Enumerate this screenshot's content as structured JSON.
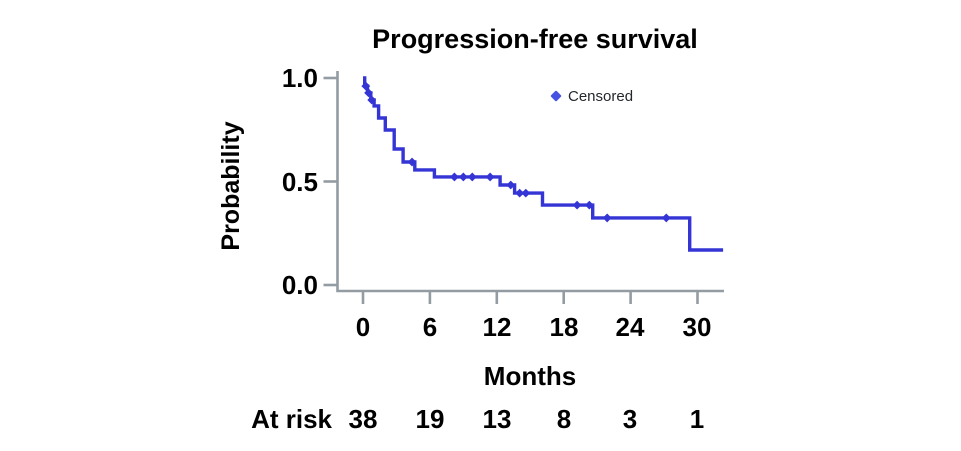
{
  "title": "Progression-free survival",
  "axes": {
    "ylabel": "Probability",
    "xlabel": "Months",
    "yticklabels": [
      "1.0",
      "0.5",
      "0.0"
    ],
    "xticklabels": [
      "0",
      "6",
      "12",
      "18",
      "24",
      "30"
    ]
  },
  "legend": {
    "label": "Censored"
  },
  "at_risk": {
    "label": "At risk",
    "values": [
      "38",
      "19",
      "13",
      "8",
      "3",
      "1"
    ]
  },
  "colors": {
    "line": "#3535d6",
    "marker": "#4653e2",
    "axis": "#949ca3",
    "text": "#000000",
    "legend_text": "#24282c"
  },
  "chart_data": {
    "type": "line",
    "subtype": "kaplan-meier-step",
    "title": "Progression-free survival",
    "xlabel": "Months",
    "ylabel": "Probability",
    "xticks": [
      0,
      6,
      12,
      18,
      24,
      30
    ],
    "yticks": [
      1.0,
      0.5,
      0.0
    ],
    "xlim": [
      0,
      32.5
    ],
    "ylim": [
      0.0,
      1.0
    ],
    "grid": false,
    "legend_position": "upper right inside",
    "x_end": 32.3,
    "steps": [
      [
        0,
        1.0
      ],
      [
        0.15,
        0.961
      ],
      [
        0.4,
        0.928
      ],
      [
        0.7,
        0.894
      ],
      [
        1.0,
        0.865
      ],
      [
        1.4,
        0.807
      ],
      [
        2.0,
        0.749
      ],
      [
        2.8,
        0.657
      ],
      [
        3.6,
        0.594
      ],
      [
        4.65,
        0.556
      ],
      [
        6.4,
        0.522
      ],
      [
        12.3,
        0.483
      ],
      [
        13.6,
        0.444
      ],
      [
        16.1,
        0.386
      ],
      [
        20.6,
        0.324
      ],
      [
        29.3,
        0.169
      ]
    ],
    "censored": [
      [
        0.25,
        0.961
      ],
      [
        0.5,
        0.928
      ],
      [
        0.78,
        0.894
      ],
      [
        4.4,
        0.594
      ],
      [
        8.2,
        0.522
      ],
      [
        9.0,
        0.522
      ],
      [
        9.8,
        0.522
      ],
      [
        11.4,
        0.522
      ],
      [
        13.25,
        0.483
      ],
      [
        14.05,
        0.444
      ],
      [
        14.6,
        0.444
      ],
      [
        19.2,
        0.386
      ],
      [
        20.3,
        0.386
      ],
      [
        21.9,
        0.324
      ],
      [
        27.2,
        0.324
      ]
    ],
    "at_risk": {
      "times": [
        0,
        6,
        12,
        18,
        24,
        30
      ],
      "counts": [
        38,
        19,
        13,
        8,
        3,
        1
      ]
    }
  }
}
